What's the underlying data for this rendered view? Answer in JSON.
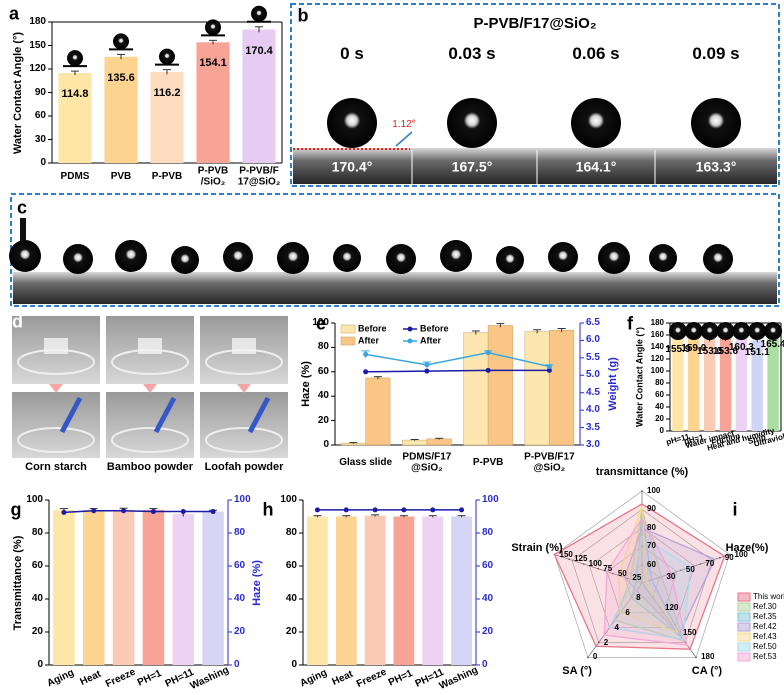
{
  "chart_data": [
    {
      "type": "bar",
      "panel": "a",
      "ylabel": "Water Contact Angle (°)",
      "categories": [
        "PDMS",
        "PVB",
        "P-PVB",
        "P-PVB /SiO₂",
        "P-PVB/F 17@SiO₂"
      ],
      "values": [
        114.8,
        135.6,
        116.2,
        154.1,
        170.4
      ],
      "errors": [
        2.5,
        3,
        3,
        2.5,
        3.5
      ],
      "colors": [
        "#fde6a6",
        "#fcd38f",
        "#fddcc0",
        "#f7a497",
        "#e6cbf3"
      ],
      "data_labels": true,
      "ylim": [
        0,
        180
      ],
      "yticks": [
        0,
        30,
        60,
        90,
        120,
        150,
        180
      ]
    },
    {
      "type": "bar",
      "panel": "e",
      "ylabel": "Haze (%)",
      "y2label": "Weight (g)",
      "categories": [
        "Glass slide",
        "PDMS/F17 @SiO₂",
        "P-PVB",
        "P-PVB/F17 @SiO₂"
      ],
      "series": [
        {
          "name": "Before",
          "type": "bar",
          "color": "#fde7ae",
          "values": [
            1.5,
            4,
            92,
            93
          ],
          "errors": [
            0.5,
            0.5,
            1.5,
            1.5
          ]
        },
        {
          "name": "After",
          "type": "bar",
          "color": "#f9c686",
          "values": [
            55,
            5,
            98,
            94
          ],
          "errors": [
            1,
            0.5,
            1.5,
            1.5
          ]
        },
        {
          "name": "Before",
          "type": "line",
          "axis": "y2",
          "color": "#1b1ba8",
          "values": [
            5.1,
            5.12,
            5.14,
            5.14
          ]
        },
        {
          "name": "After",
          "type": "line",
          "axis": "y2",
          "color": "#3aa6e0",
          "values": [
            5.6,
            5.3,
            5.65,
            5.25
          ],
          "errors": [
            0.1,
            0.08,
            0.05,
            0.05
          ]
        }
      ],
      "legend": "upper left",
      "y2color": "#2b2bd0",
      "ylim": [
        0,
        100
      ],
      "yticks": [
        0,
        20,
        40,
        60,
        80,
        100
      ],
      "y2lim": [
        3,
        6.5
      ],
      "y2ticks": [
        {
          "value": 3,
          "label": "3.0"
        },
        {
          "value": 3.5,
          "label": "3.5"
        },
        {
          "value": 4,
          "label": "4.0"
        },
        {
          "value": 4.5,
          "label": "4.5"
        },
        {
          "value": 5,
          "label": "5.0"
        },
        {
          "value": 5.5,
          "label": "5.5"
        },
        {
          "value": 6,
          "label": "6.0"
        },
        {
          "value": 6.5,
          "label": "6.5"
        }
      ]
    },
    {
      "type": "bar",
      "panel": "f",
      "ylabel": "Water Contact Angle (°)",
      "categories": [
        "pH=11",
        "pH=1",
        "Water impact",
        "Friction",
        "Heat and humidity",
        "Strip",
        "Ultraviolet"
      ],
      "values": [
        155.9,
        159,
        153,
        153.6,
        160.3,
        151.1,
        165.4
      ],
      "value_labels": [
        "155.9",
        "159.0",
        "153.0",
        "153.6",
        "160.3",
        "151.1",
        "165.4"
      ],
      "errors": [
        4,
        3,
        4,
        3.5,
        4,
        3,
        3
      ],
      "colors": [
        "#fde6a6",
        "#fcd38f",
        "#fbcab5",
        "#f7a497",
        "#eed2f3",
        "#cfd4f6",
        "#a9dfa0"
      ],
      "data_labels": true,
      "ylim": [
        0,
        180
      ],
      "yticks": [
        0,
        20,
        40,
        60,
        80,
        100,
        120,
        140,
        160,
        180
      ]
    },
    {
      "type": "bar",
      "panel": "g",
      "ylabel": "Transmittance (%)",
      "y2label": "Haze (%)",
      "categories": [
        "Aging",
        "Heat",
        "Freeze",
        "PH=1",
        "PH=11",
        "Washing"
      ],
      "series": [
        {
          "type": "bar",
          "colors": [
            "#fde6a6",
            "#fcd38f",
            "#fbcab5",
            "#f7a497",
            "#eed2f3",
            "#d6d5f5"
          ],
          "values": [
            94,
            94,
            94,
            94,
            91.5,
            93
          ],
          "errors": [
            0.8,
            0.8,
            1,
            0.8,
            1.5,
            0.8
          ]
        },
        {
          "type": "line",
          "axis": "y2",
          "color": "#1b1ba8",
          "values": [
            92.5,
            93.5,
            93.5,
            93,
            93,
            93
          ]
        }
      ],
      "y2color": "#2b2bd0",
      "ylim": [
        0,
        100
      ],
      "yticks": [
        0,
        20,
        40,
        60,
        80,
        100
      ],
      "y2lim": [
        0,
        100
      ],
      "y2ticks": [
        0,
        20,
        40,
        60,
        80,
        100
      ]
    },
    {
      "type": "bar",
      "panel": "h",
      "categories": [
        "Aging",
        "Heat",
        "Freeze",
        "PH=1",
        "PH=11",
        "Washing"
      ],
      "series": [
        {
          "type": "bar",
          "colors": [
            "#fde6a6",
            "#fcd38f",
            "#fbcab5",
            "#f7a497",
            "#eed2f3",
            "#d6d5f5"
          ],
          "values": [
            90,
            90,
            90.5,
            90,
            90,
            90
          ],
          "errors": [
            0.5,
            0.5,
            0.5,
            0.5,
            0.5,
            0.5
          ]
        },
        {
          "type": "line",
          "axis": "y2",
          "color": "#1b1ba8",
          "values": [
            94,
            94,
            94,
            94,
            94,
            94
          ]
        }
      ],
      "y2color": "#2b2bd0",
      "ylim": [
        0,
        100
      ],
      "yticks": [
        0,
        20,
        40,
        60,
        80,
        100
      ],
      "y2lim": [
        0,
        100
      ],
      "y2ticks": [
        0,
        20,
        40,
        60,
        80,
        100
      ]
    },
    {
      "type": "radar",
      "panel": "i",
      "axes": [
        {
          "label": "transmittance (%)",
          "lim": [
            50,
            100
          ],
          "ticks": [
            60,
            70,
            80,
            90,
            100
          ]
        },
        {
          "label": "Haze(%)",
          "lim": [
            10,
            100
          ],
          "ticks": [
            30,
            50,
            70,
            90,
            100
          ]
        },
        {
          "label": "CA (°)",
          "lim": [
            90,
            180
          ],
          "ticks": [
            120,
            150,
            180
          ]
        },
        {
          "label": "SA (°)",
          "lim": [
            10,
            0
          ],
          "ticks": [
            8,
            6,
            4,
            2,
            0
          ]
        },
        {
          "label": "Strain (%)",
          "lim": [
            0,
            150
          ],
          "ticks": [
            25,
            50,
            75,
            100,
            125,
            150
          ]
        }
      ],
      "series": [
        {
          "name": "This work",
          "color": "#e8768a",
          "values": [
            93,
            95,
            170,
            1.5,
            150
          ]
        },
        {
          "name": "Ref.30",
          "color": "#b0d4a0",
          "values": [
            90,
            30,
            160,
            5,
            20
          ]
        },
        {
          "name": "Ref.35",
          "color": "#7fc6d9",
          "values": [
            88,
            20,
            155,
            8,
            10
          ]
        },
        {
          "name": "Ref.42",
          "color": "#b5a2d8",
          "values": [
            80,
            85,
            152,
            9,
            30
          ]
        },
        {
          "name": "Ref.43",
          "color": "#f6d98a",
          "values": [
            92,
            15,
            150,
            6,
            40
          ]
        },
        {
          "name": "Ref.50",
          "color": "#a8dced",
          "values": [
            75,
            60,
            158,
            4,
            15
          ]
        },
        {
          "name": "Ref.53",
          "color": "#f3a8d6",
          "values": [
            85,
            40,
            165,
            3,
            60
          ]
        }
      ]
    }
  ],
  "image_panels": {
    "b": {
      "panel": "b",
      "title": "P-PVB/F17@SiO₂",
      "times": [
        "0 s",
        "0.03 s",
        "0.06 s",
        "0.09 s"
      ],
      "angles": [
        "170.4°",
        "167.5°",
        "164.1°",
        "163.3°"
      ],
      "annotation": "1.12°"
    },
    "c": {
      "panel": "c"
    },
    "d": {
      "panel": "d",
      "captions": [
        "Corn starch",
        "Bamboo powder",
        "Loofah powder"
      ]
    }
  }
}
